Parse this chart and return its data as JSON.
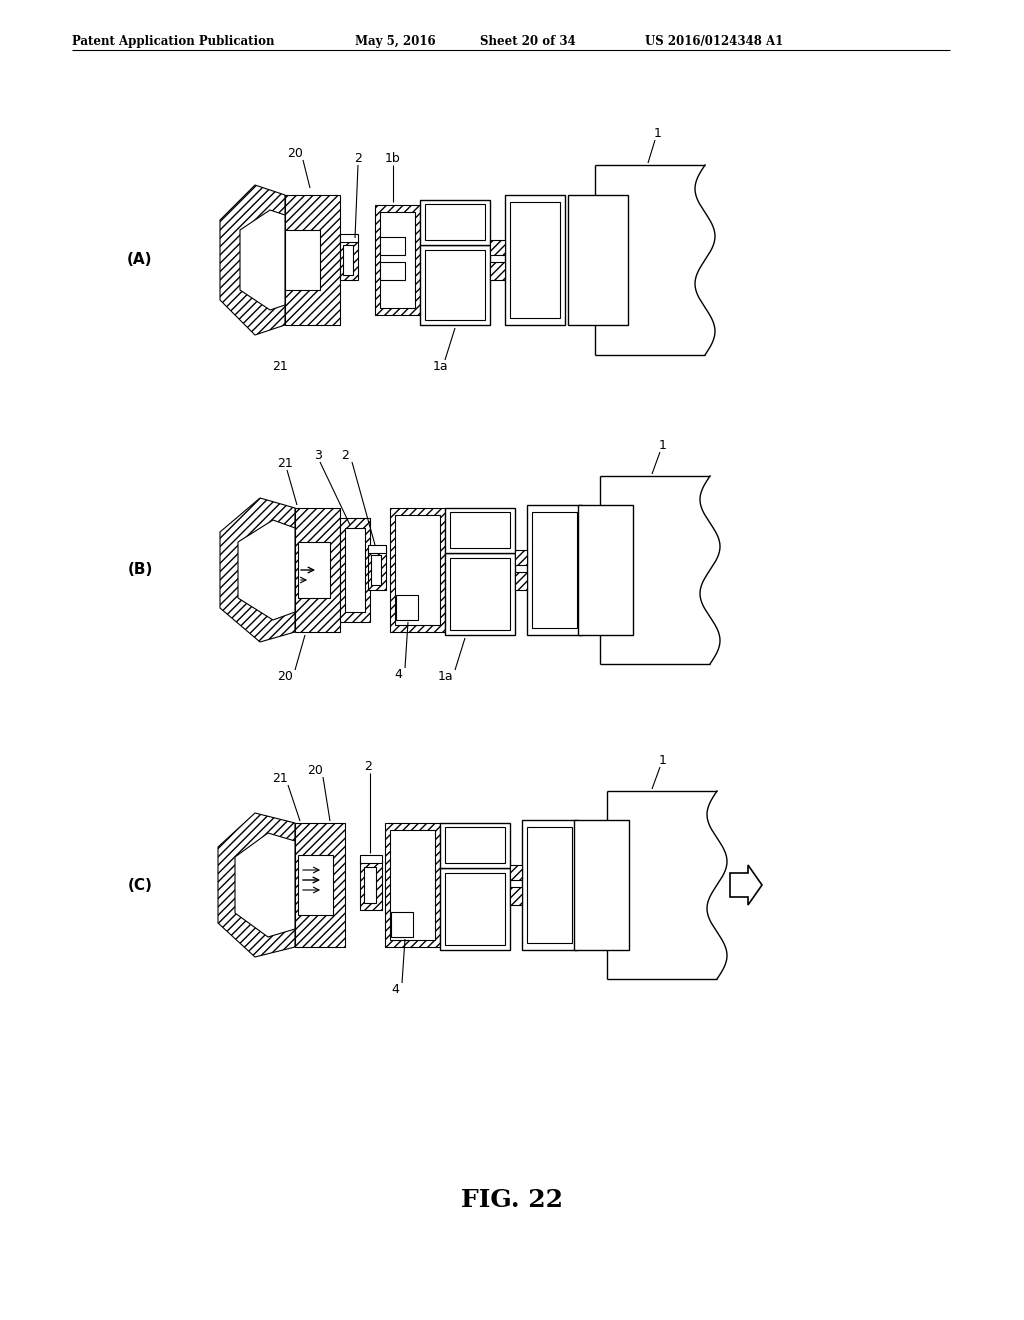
{
  "bg_color": "#ffffff",
  "header_text": "Patent Application Publication",
  "header_date": "May 5, 2016",
  "header_sheet": "Sheet 20 of 34",
  "header_patent": "US 2016/0124348 A1",
  "figure_label": "FIG. 22",
  "fig_width": 10.24,
  "fig_height": 13.2,
  "dpi": 100
}
